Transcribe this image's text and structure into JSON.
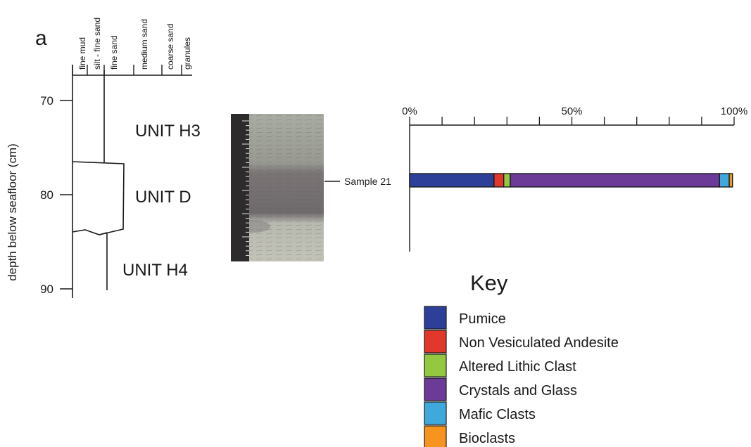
{
  "panel_label": "a",
  "log": {
    "y_axis_label": "depth below seafloor (cm)",
    "depth_ticks": [
      70,
      80,
      90
    ],
    "grain_sizes": [
      "fine mud",
      "silt - fine sand",
      "fine sand",
      "medium sand",
      "coarse sand",
      "granules"
    ],
    "units": [
      "UNIT H3",
      "UNIT D",
      "UNIT H4"
    ]
  },
  "core_photo": {
    "sample_label": "Sample 21"
  },
  "chart_data": {
    "type": "bar",
    "orientation": "horizontal",
    "stacked": true,
    "x_ticks": [
      "0%",
      "50%",
      "100%"
    ],
    "xlim": [
      0,
      100
    ],
    "categories": [
      "Sample 21"
    ],
    "series": [
      {
        "name": "Pumice",
        "values": [
          26
        ],
        "color": "#2e3f9a"
      },
      {
        "name": "Non Vesiculated Andesite",
        "values": [
          3
        ],
        "color": "#e2382b"
      },
      {
        "name": "Altered Lithic Clast",
        "values": [
          2
        ],
        "color": "#94c841"
      },
      {
        "name": "Crystals and Glass",
        "values": [
          64.5
        ],
        "color": "#6c3a97"
      },
      {
        "name": "Mafic Clasts",
        "values": [
          3
        ],
        "color": "#40a9db"
      },
      {
        "name": "Bioclasts",
        "values": [
          1
        ],
        "color": "#f7941d"
      }
    ]
  },
  "key": {
    "title": "Key"
  }
}
